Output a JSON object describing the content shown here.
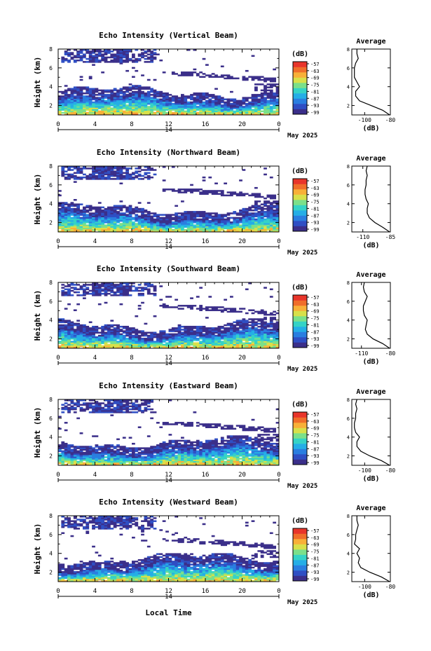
{
  "figure": {
    "x_label": "Local Time",
    "date_label": "May 2025",
    "day_label": "14",
    "unit_label": "(dB)",
    "y_label": "Height (km)"
  },
  "chart_data": [
    {
      "type": "heatmap",
      "title": "Echo Intensity (Vertical Beam)",
      "xlabel": "",
      "ylabel": "Height (km)",
      "x_ticks": [
        "0",
        "4",
        "8",
        "12",
        "16",
        "20",
        "0"
      ],
      "y_ticks": [
        "2",
        "4",
        "6",
        "8"
      ],
      "xlim": [
        0,
        24
      ],
      "ylim": [
        1,
        8
      ],
      "colorbar": {
        "label": "(dB)",
        "ticks": [
          "-57",
          "-63",
          "-69",
          "-75",
          "-81",
          "-87",
          "-93",
          "-99"
        ],
        "range": [
          -99,
          -57
        ]
      },
      "average": {
        "title": "Average",
        "xlabel": "(dB)",
        "x_ticks": [
          "-100",
          "-80"
        ],
        "y_ticks": [
          "2",
          "4",
          "6",
          "8"
        ],
        "heights": [
          1,
          1.5,
          2,
          2.5,
          3,
          3.5,
          4,
          4.5,
          5,
          5.5,
          6,
          6.5,
          7,
          7.5,
          8
        ],
        "values": [
          -80,
          -86,
          -95,
          -104,
          -107,
          -107,
          -104,
          -106,
          -108,
          -108,
          -108,
          -107,
          -105,
          -106,
          -106
        ]
      }
    },
    {
      "type": "heatmap",
      "title": "Echo Intensity (Northward Beam)",
      "xlabel": "",
      "ylabel": "Height (km)",
      "x_ticks": [
        "0",
        "4",
        "8",
        "12",
        "16",
        "20",
        "0"
      ],
      "y_ticks": [
        "2",
        "4",
        "6",
        "8"
      ],
      "xlim": [
        0,
        24
      ],
      "ylim": [
        1,
        8
      ],
      "colorbar": {
        "label": "(dB)",
        "ticks": [
          "-57",
          "-63",
          "-69",
          "-75",
          "-81",
          "-87",
          "-93",
          "-99"
        ],
        "range": [
          -99,
          -57
        ]
      },
      "average": {
        "title": "Average",
        "xlabel": "(dB)",
        "x_ticks": [
          "-110",
          "-85"
        ],
        "y_ticks": [
          "2",
          "4",
          "6",
          "8"
        ],
        "heights": [
          1,
          1.5,
          2,
          2.5,
          3,
          3.5,
          4,
          4.5,
          5,
          5.5,
          6,
          6.5,
          7,
          7.5,
          8
        ],
        "values": [
          -85,
          -92,
          -99,
          -104,
          -106,
          -106,
          -105,
          -107,
          -108,
          -108,
          -107,
          -107,
          -106,
          -107,
          -106
        ]
      }
    },
    {
      "type": "heatmap",
      "title": "Echo Intensity (Southward Beam)",
      "xlabel": "",
      "ylabel": "Height (km)",
      "x_ticks": [
        "0",
        "4",
        "8",
        "12",
        "16",
        "20",
        "0"
      ],
      "y_ticks": [
        "2",
        "4",
        "6",
        "8"
      ],
      "xlim": [
        0,
        24
      ],
      "ylim": [
        1,
        8
      ],
      "colorbar": {
        "label": "(dB)",
        "ticks": [
          "-57",
          "-63",
          "-69",
          "-75",
          "-81",
          "-87",
          "-93",
          "-99"
        ],
        "range": [
          -99,
          -57
        ]
      },
      "average": {
        "title": "Average",
        "xlabel": "(dB)",
        "x_ticks": [
          "-110",
          "-80"
        ],
        "y_ticks": [
          "2",
          "4",
          "6",
          "8"
        ],
        "heights": [
          1,
          1.5,
          2,
          2.5,
          3,
          3.5,
          4,
          4.5,
          5,
          5.5,
          6,
          6.5,
          7,
          7.5,
          8
        ],
        "values": [
          -80,
          -88,
          -98,
          -104,
          -106,
          -105,
          -104,
          -107,
          -108,
          -108,
          -106,
          -104,
          -107,
          -108,
          -107
        ]
      }
    },
    {
      "type": "heatmap",
      "title": "Echo Intensity (Eastward Beam)",
      "xlabel": "",
      "ylabel": "Height (km)",
      "x_ticks": [
        "0",
        "4",
        "8",
        "12",
        "16",
        "20",
        "0"
      ],
      "y_ticks": [
        "2",
        "4",
        "6",
        "8"
      ],
      "xlim": [
        0,
        24
      ],
      "ylim": [
        1,
        8
      ],
      "colorbar": {
        "label": "(dB)",
        "ticks": [
          "-57",
          "-63",
          "-69",
          "-75",
          "-81",
          "-87",
          "-93",
          "-99"
        ],
        "range": [
          -99,
          -57
        ]
      },
      "average": {
        "title": "Average",
        "xlabel": "(dB)",
        "x_ticks": [
          "-100",
          "-80"
        ],
        "y_ticks": [
          "2",
          "4",
          "6",
          "8"
        ],
        "heights": [
          1,
          1.5,
          2,
          2.5,
          3,
          3.5,
          4,
          4.5,
          5,
          5.5,
          6,
          6.5,
          7,
          7.5,
          8
        ],
        "values": [
          -80,
          -87,
          -96,
          -103,
          -106,
          -106,
          -104,
          -107,
          -108,
          -108,
          -107,
          -107,
          -106,
          -107,
          -106
        ]
      }
    },
    {
      "type": "heatmap",
      "title": "Echo Intensity (Westward Beam)",
      "xlabel": "Local Time",
      "ylabel": "Height (km)",
      "x_ticks": [
        "0",
        "4",
        "8",
        "12",
        "16",
        "20",
        "0"
      ],
      "y_ticks": [
        "2",
        "4",
        "6",
        "8"
      ],
      "xlim": [
        0,
        24
      ],
      "ylim": [
        1,
        8
      ],
      "colorbar": {
        "label": "(dB)",
        "ticks": [
          "-57",
          "-63",
          "-69",
          "-75",
          "-81",
          "-87",
          "-93",
          "-99"
        ],
        "range": [
          -99,
          -57
        ]
      },
      "average": {
        "title": "Average",
        "xlabel": "(dB)",
        "x_ticks": [
          "-100",
          "-80"
        ],
        "y_ticks": [
          "2",
          "4",
          "6",
          "8"
        ],
        "heights": [
          1,
          1.5,
          2,
          2.5,
          3,
          3.5,
          4,
          4.5,
          5,
          5.5,
          6,
          6.5,
          7,
          7.5,
          8
        ],
        "values": [
          -80,
          -87,
          -96,
          -103,
          -105,
          -104,
          -106,
          -104,
          -108,
          -107,
          -107,
          -106,
          -105,
          -106,
          -106
        ]
      }
    }
  ],
  "colors": {
    "colormap": [
      "#3b2f8a",
      "#2f4fc4",
      "#2a7ee0",
      "#25aee6",
      "#35d3c6",
      "#7be08a",
      "#d8e04a",
      "#f8b038",
      "#f06e2a",
      "#e8352a"
    ]
  }
}
